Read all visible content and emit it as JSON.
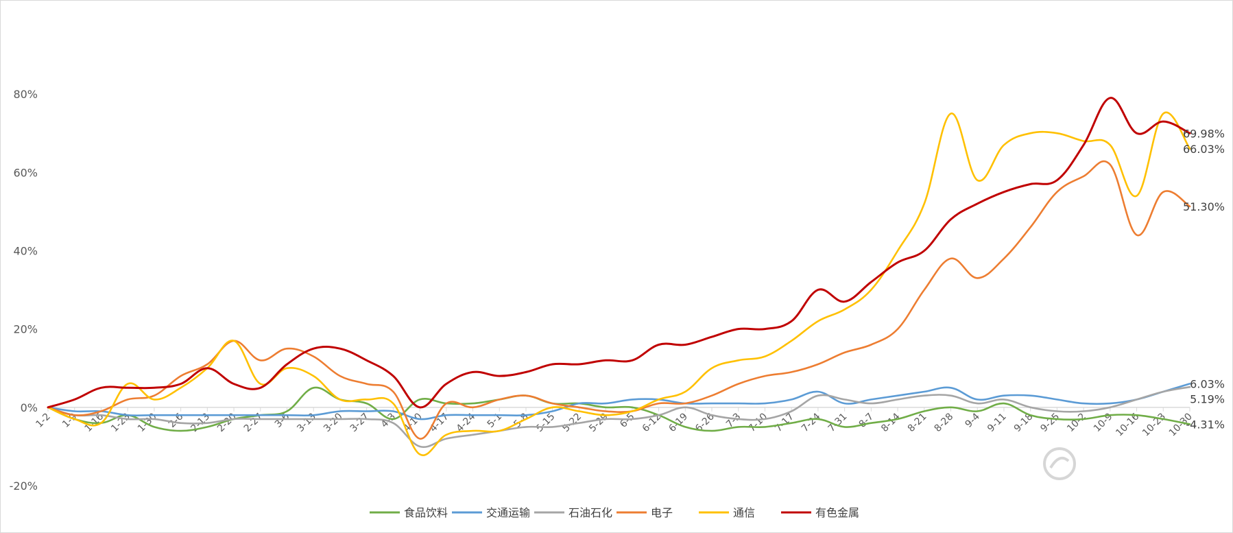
{
  "chart_data": {
    "type": "line",
    "title": "",
    "xlabel": "",
    "ylabel": "",
    "ylim": [
      -20,
      90
    ],
    "y_ticks": [
      -20,
      0,
      20,
      40,
      60,
      80
    ],
    "y_tick_format": "{v}%",
    "grid": false,
    "legend_position": "bottom",
    "x_tick_labels": [
      "1-2",
      "1-9",
      "1-16",
      "1-23",
      "1-30",
      "2-6",
      "2-13",
      "2-20",
      "2-27",
      "3-6",
      "3-13",
      "3-20",
      "3-27",
      "4-3",
      "4-10",
      "4-17",
      "4-24",
      "5-1",
      "5-8",
      "5-15",
      "5-22",
      "5-29",
      "6-5",
      "6-12",
      "6-19",
      "6-26",
      "7-3",
      "7-10",
      "7-17",
      "7-24",
      "7-31",
      "8-7",
      "8-14",
      "8-21",
      "8-28",
      "9-4",
      "9-11",
      "9-18",
      "9-25",
      "10-2",
      "10-9",
      "10-16",
      "10-23",
      "10-30"
    ],
    "end_labels": [
      {
        "series": "有色金属",
        "text": "69.98%"
      },
      {
        "series": "通信",
        "text": "66.03%"
      },
      {
        "series": "电子",
        "text": "51.30%"
      },
      {
        "series": "交通运输",
        "text": "6.03%"
      },
      {
        "series": "石油石化",
        "text": "5.19%"
      },
      {
        "series": "食品饮料",
        "text": "-4.31%"
      }
    ],
    "series": [
      {
        "name": "食品饮料",
        "color": "#70ad47",
        "values": [
          0,
          -3,
          -4,
          -2,
          -5,
          -6,
          -5,
          -3,
          -2,
          -1,
          5,
          2,
          1,
          -3,
          2,
          1,
          1,
          2,
          3,
          1,
          1,
          0,
          0,
          -2,
          -5,
          -6,
          -5,
          -5,
          -4,
          -3,
          -5,
          -4,
          -3,
          -1,
          0,
          -1,
          1,
          -2,
          -3,
          -3,
          -2,
          -2,
          -3,
          -4.31
        ]
      },
      {
        "name": "交通运输",
        "color": "#5b9bd5",
        "values": [
          0,
          -1,
          -1,
          -2,
          -2,
          -2,
          -2,
          -2,
          -2,
          -2,
          -2,
          -1,
          -1,
          -1,
          -3,
          -2,
          -2,
          -2,
          -2,
          -1,
          1,
          1,
          2,
          2,
          1,
          1,
          1,
          1,
          2,
          4,
          1,
          2,
          3,
          4,
          5,
          2,
          3,
          3,
          2,
          1,
          1,
          2,
          4,
          6.03
        ]
      },
      {
        "name": "石油石化",
        "color": "#a5a5a5",
        "values": [
          0,
          -2,
          -2,
          -3,
          -3,
          -4,
          -4,
          -3,
          -3,
          -3,
          -3,
          -3,
          -3,
          -4,
          -10,
          -8,
          -7,
          -6,
          -5,
          -5,
          -4,
          -3,
          -3,
          -2,
          0,
          -2,
          -3,
          -3,
          -1,
          3,
          2,
          1,
          2,
          3,
          3,
          1,
          2,
          0,
          -1,
          -1,
          0,
          2,
          4,
          5.19
        ]
      },
      {
        "name": "电子",
        "color": "#ed7d31",
        "values": [
          0,
          -2,
          -1,
          2,
          3,
          8,
          11,
          17,
          12,
          15,
          13,
          8,
          6,
          4,
          -8,
          1,
          0,
          2,
          3,
          1,
          0,
          -1,
          -1,
          1,
          1,
          3,
          6,
          8,
          9,
          11,
          14,
          16,
          20,
          30,
          38,
          33,
          38,
          46,
          55,
          59,
          62,
          44,
          55,
          51.3
        ]
      },
      {
        "name": "通信",
        "color": "#ffc000",
        "values": [
          0,
          -3,
          -4,
          6,
          2,
          5,
          10,
          17,
          6,
          10,
          8,
          2,
          2,
          1,
          -12,
          -7,
          -6,
          -6,
          -3,
          0,
          -1,
          -2,
          -1,
          2,
          4,
          10,
          12,
          13,
          17,
          22,
          25,
          30,
          40,
          52,
          75,
          58,
          67,
          70,
          70,
          68,
          67,
          54,
          75,
          66.03
        ]
      },
      {
        "name": "有色金属",
        "color": "#c00000",
        "values": [
          0,
          2,
          5,
          5,
          5,
          6,
          10,
          6,
          5,
          11,
          15,
          15,
          12,
          8,
          0,
          6,
          9,
          8,
          9,
          11,
          11,
          12,
          12,
          16,
          16,
          18,
          20,
          20,
          22,
          30,
          27,
          32,
          37,
          40,
          48,
          52,
          55,
          57,
          58,
          67,
          79,
          70,
          73,
          69.98
        ]
      }
    ]
  }
}
